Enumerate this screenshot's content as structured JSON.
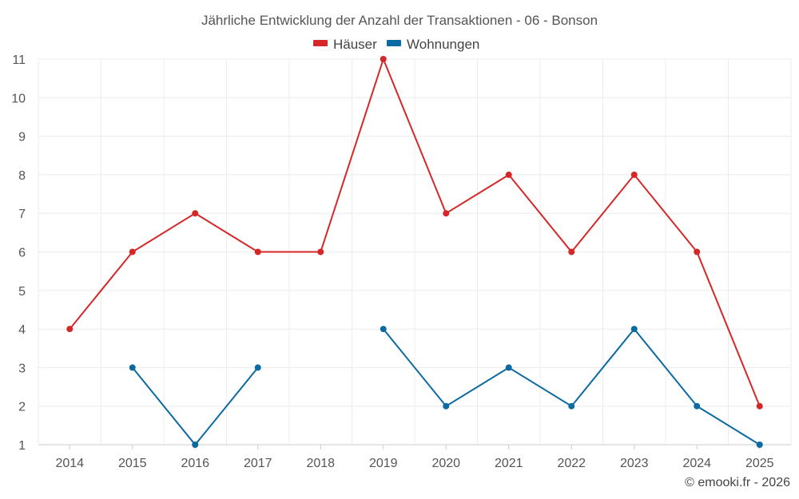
{
  "chart_data": {
    "type": "line",
    "title": "Jährliche Entwicklung der Anzahl der Transaktionen - 06 - Bonson",
    "xlabel": "",
    "ylabel": "",
    "categories": [
      "2014",
      "2015",
      "2016",
      "2017",
      "2018",
      "2019",
      "2020",
      "2021",
      "2022",
      "2023",
      "2024",
      "2025"
    ],
    "ylim": [
      1,
      11
    ],
    "yticks": [
      "1",
      "2",
      "3",
      "4",
      "5",
      "6",
      "7",
      "8",
      "9",
      "10",
      "11"
    ],
    "grid": true,
    "legend_position": "top-center",
    "series": [
      {
        "name": "Häuser",
        "color": "#d62728",
        "values": [
          4,
          6,
          7,
          6,
          6,
          11,
          7,
          8,
          6,
          8,
          6,
          2
        ]
      },
      {
        "name": "Wohnungen",
        "color": "#0b6aa2",
        "values": [
          null,
          3,
          1,
          3,
          null,
          4,
          2,
          3,
          2,
          4,
          2,
          1
        ]
      }
    ]
  },
  "footer": {
    "credit": "© emooki.fr - 2026"
  }
}
